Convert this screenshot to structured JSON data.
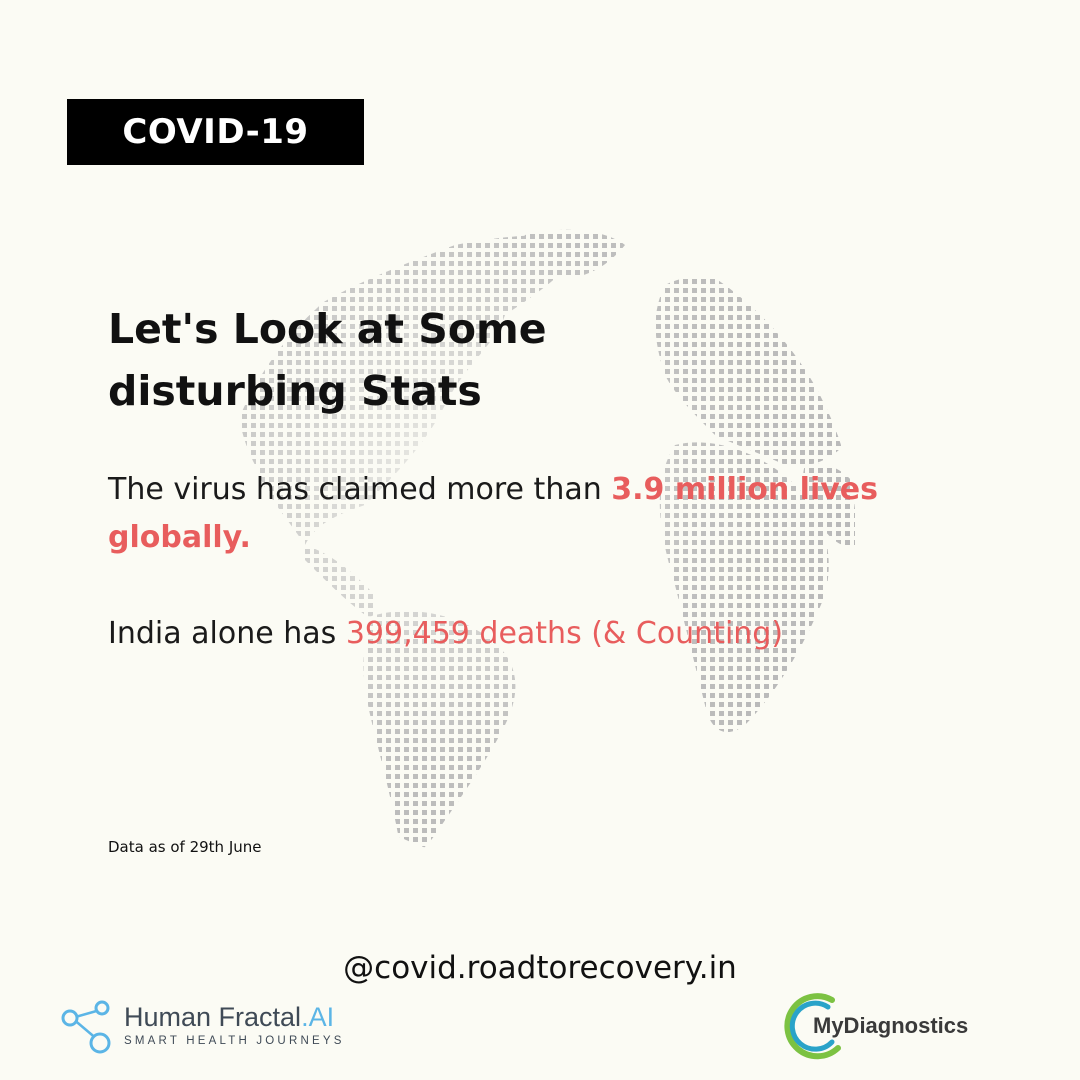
{
  "tag": {
    "label": "COVID-19"
  },
  "headline": {
    "line1": "Let's Look at Some",
    "line2": "disturbing Stats"
  },
  "stat1": {
    "prefix": "The virus has claimed more than ",
    "highlight": "3.9 million lives globally."
  },
  "stat2": {
    "prefix": "India alone has ",
    "highlight": "399,459 deaths (& Counting)"
  },
  "data_note": "Data as of 29th June",
  "handle": "@covid.roadtorecovery.in",
  "logos": {
    "human_fractal": {
      "name": "Human Fractal",
      "suffix": ".AI",
      "tagline": "SMART HEALTH JOURNEYS"
    },
    "my_diagnostics": {
      "name": "MyDiagnostics"
    }
  },
  "colors": {
    "background": "#fbfbf4",
    "accent": "#e85d5d",
    "tag_background": "#000000",
    "globe_dots": "#b8b8b8"
  },
  "icons": [
    "globe-dot-icon",
    "molecule-icon",
    "ring-icon"
  ]
}
